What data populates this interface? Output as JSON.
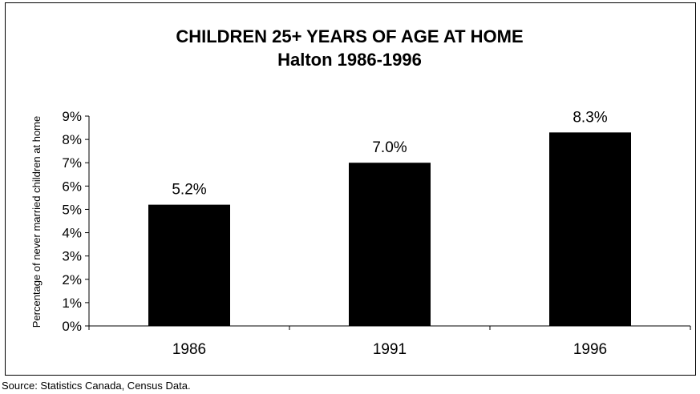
{
  "chart_data": {
    "type": "bar",
    "title": "CHILDREN 25+ YEARS OF AGE AT HOME",
    "subtitle": "Halton 1986-1996",
    "ylabel": "Percentage of never married children at home",
    "xlabel": "",
    "categories": [
      "1986",
      "1991",
      "1996"
    ],
    "values": [
      5.2,
      7.0,
      8.3
    ],
    "data_labels": [
      "5.2%",
      "7.0%",
      "8.3%"
    ],
    "ylim": [
      0,
      9
    ],
    "yticks": [
      0,
      1,
      2,
      3,
      4,
      5,
      6,
      7,
      8,
      9
    ],
    "ytick_labels": [
      "0%",
      "1%",
      "2%",
      "3%",
      "4%",
      "5%",
      "6%",
      "7%",
      "8%",
      "9%"
    ],
    "grid": false,
    "legend": "none",
    "bar_color": "#000000"
  },
  "source": "Source: Statistics Canada, Census Data."
}
